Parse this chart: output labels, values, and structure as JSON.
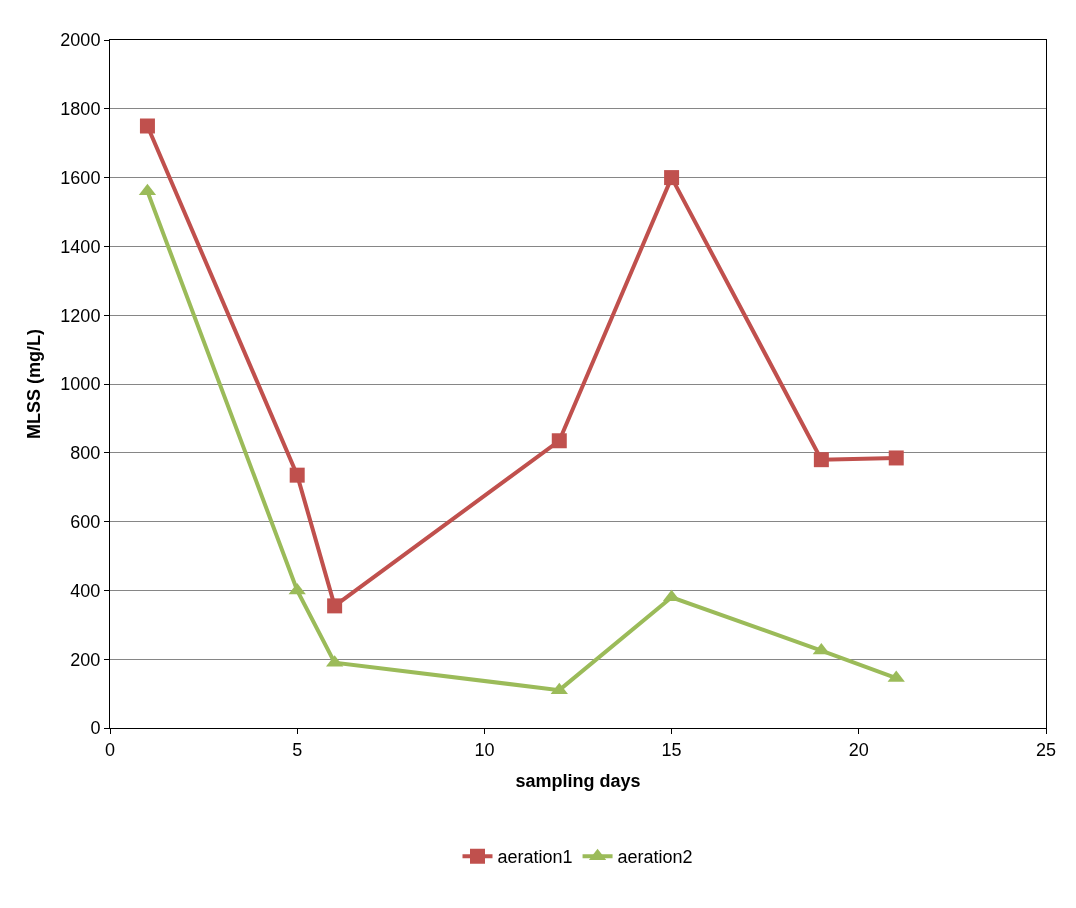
{
  "chart_data": {
    "type": "line",
    "xlabel": "sampling days",
    "ylabel": "MLSS (mg/L)",
    "x": [
      1,
      5,
      6,
      12,
      15,
      19,
      21
    ],
    "series": [
      {
        "name": "aeration1",
        "color": "#c0504d",
        "marker": "square",
        "values": [
          1750,
          735,
          355,
          835,
          1600,
          780,
          785
        ]
      },
      {
        "name": "aeration2",
        "color": "#9bbb59",
        "marker": "triangle",
        "values": [
          1560,
          400,
          190,
          110,
          380,
          225,
          145
        ]
      }
    ],
    "xlim": [
      0,
      25
    ],
    "xticks": [
      0,
      5,
      10,
      15,
      20,
      25
    ],
    "ylim": [
      0,
      2000
    ],
    "yticks": [
      0,
      200,
      400,
      600,
      800,
      1000,
      1200,
      1400,
      1600,
      1800,
      2000
    ],
    "grid": "y",
    "legend": "bottom",
    "line_style": "solid"
  }
}
